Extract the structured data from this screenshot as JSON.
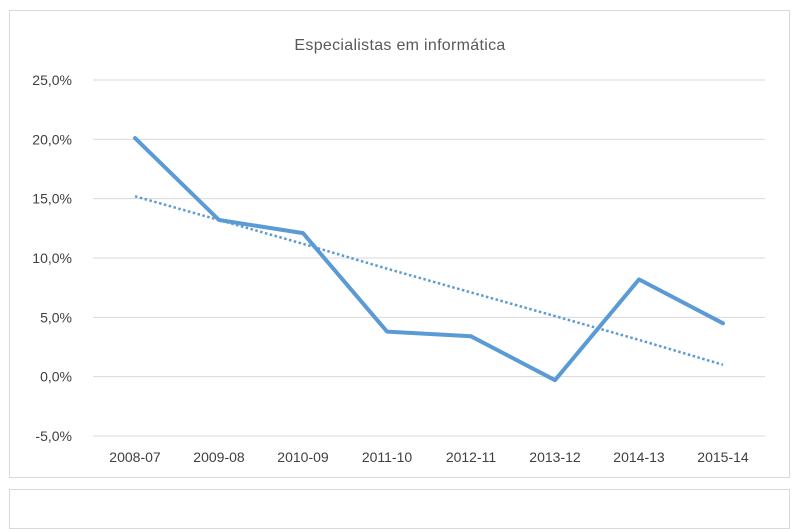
{
  "chart_data": {
    "type": "line",
    "title": "Especialistas em informática",
    "categories": [
      "2008-07",
      "2009-08",
      "2010-09",
      "2011-10",
      "2012-11",
      "2013-12",
      "2014-13",
      "2015-14"
    ],
    "series": [
      {
        "values": [
          20.1,
          13.2,
          12.1,
          3.8,
          3.4,
          -0.3,
          8.2,
          4.5
        ],
        "color": "#5b9bd5",
        "style": "solid"
      },
      {
        "values": [
          15.2,
          13.2,
          11.2,
          9.1,
          7.1,
          5.1,
          3.1,
          1.0
        ],
        "color": "#5b9bd5",
        "style": "dotted",
        "kind": "trendline"
      }
    ],
    "y_ticks": [
      "25,0%",
      "20,0%",
      "15,0%",
      "10,0%",
      "5,0%",
      "0,0%",
      "-5,0%"
    ],
    "ylim": [
      -5,
      25
    ],
    "grid": true,
    "legend": "none"
  }
}
